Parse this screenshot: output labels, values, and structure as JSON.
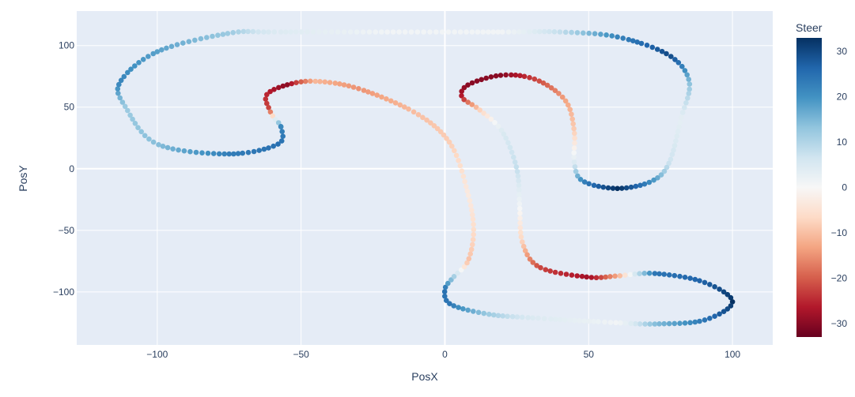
{
  "chart_data": {
    "type": "scatter",
    "title": "",
    "xlabel": "PosX",
    "ylabel": "PosY",
    "xlim": [
      -128,
      114
    ],
    "ylim": [
      -143,
      128
    ],
    "x_ticks": [
      -100,
      -50,
      0,
      50,
      100
    ],
    "y_ticks": [
      -100,
      -50,
      0,
      50,
      100
    ],
    "x_tick_labels": [
      "−100",
      "−50",
      "0",
      "50",
      "100"
    ],
    "y_tick_labels": [
      "−100",
      "−50",
      "0",
      "50",
      "100"
    ],
    "grid": true,
    "colorbar": {
      "title": "Steer",
      "range": [
        -33,
        33
      ],
      "ticks": [
        30,
        20,
        10,
        0,
        -10,
        -20,
        -30
      ],
      "tick_labels": [
        "30",
        "20",
        "10",
        "0",
        "−10",
        "−20",
        "−30"
      ],
      "colorscale": [
        "#67001f",
        "#b2182b",
        "#d6604d",
        "#f4a582",
        "#fddbc7",
        "#f7f7f7",
        "#d1e5f0",
        "#92c5de",
        "#4393c3",
        "#2166ac",
        "#053061"
      ]
    },
    "colors": {
      "plot_bg": "#e5ecf6",
      "grid": "#ffffff",
      "text": "#2a3f5f"
    },
    "path_knots": [
      {
        "x": -57,
        "y": 34,
        "steer": 22
      },
      {
        "x": -58,
        "y": 20,
        "steer": 25
      },
      {
        "x": -75,
        "y": 12,
        "steer": 23
      },
      {
        "x": -100,
        "y": 20,
        "steer": 14
      },
      {
        "x": -111,
        "y": 50,
        "steer": 12
      },
      {
        "x": -113,
        "y": 70,
        "steer": 22
      },
      {
        "x": -100,
        "y": 95,
        "steer": 18
      },
      {
        "x": -75,
        "y": 110,
        "steer": 12
      },
      {
        "x": -60,
        "y": 111,
        "steer": 5
      },
      {
        "x": -20,
        "y": 111,
        "steer": 1
      },
      {
        "x": 20,
        "y": 111,
        "steer": 1
      },
      {
        "x": 40,
        "y": 111,
        "steer": 8
      },
      {
        "x": 60,
        "y": 107,
        "steer": 22
      },
      {
        "x": 78,
        "y": 92,
        "steer": 30
      },
      {
        "x": 85,
        "y": 70,
        "steer": 14
      },
      {
        "x": 82,
        "y": 40,
        "steer": 3
      },
      {
        "x": 78,
        "y": 5,
        "steer": 7
      },
      {
        "x": 72,
        "y": -10,
        "steer": 20
      },
      {
        "x": 60,
        "y": -16,
        "steer": 33
      },
      {
        "x": 48,
        "y": -10,
        "steer": 22
      },
      {
        "x": 45,
        "y": 5,
        "steer": 5
      },
      {
        "x": 45,
        "y": 30,
        "steer": -8
      },
      {
        "x": 42,
        "y": 55,
        "steer": -13
      },
      {
        "x": 32,
        "y": 72,
        "steer": -22
      },
      {
        "x": 20,
        "y": 76,
        "steer": -30
      },
      {
        "x": 8,
        "y": 68,
        "steer": -30
      },
      {
        "x": 6,
        "y": 58,
        "steer": -26
      },
      {
        "x": 12,
        "y": 48,
        "steer": -8
      },
      {
        "x": 20,
        "y": 30,
        "steer": 5
      },
      {
        "x": 25,
        "y": 0,
        "steer": 8
      },
      {
        "x": 26,
        "y": -30,
        "steer": 1
      },
      {
        "x": 27,
        "y": -60,
        "steer": -8
      },
      {
        "x": 33,
        "y": -80,
        "steer": -22
      },
      {
        "x": 50,
        "y": -88,
        "steer": -28
      },
      {
        "x": 60,
        "y": -87,
        "steer": -13
      },
      {
        "x": 73,
        "y": -85,
        "steer": 24
      },
      {
        "x": 90,
        "y": -92,
        "steer": 27
      },
      {
        "x": 100,
        "y": -108,
        "steer": 33
      },
      {
        "x": 90,
        "y": -123,
        "steer": 24
      },
      {
        "x": 73,
        "y": -126,
        "steer": 14
      },
      {
        "x": 60,
        "y": -125,
        "steer": 1
      },
      {
        "x": 30,
        "y": -121,
        "steer": 5
      },
      {
        "x": 15,
        "y": -118,
        "steer": 12
      },
      {
        "x": 2,
        "y": -110,
        "steer": 24
      },
      {
        "x": 0,
        "y": -98,
        "steer": 25
      },
      {
        "x": 3,
        "y": -88,
        "steer": 12
      },
      {
        "x": 8,
        "y": -75,
        "steer": -10
      },
      {
        "x": 10,
        "y": -50,
        "steer": -6
      },
      {
        "x": 8,
        "y": -20,
        "steer": -3
      },
      {
        "x": 2,
        "y": 20,
        "steer": -8
      },
      {
        "x": -10,
        "y": 45,
        "steer": -10
      },
      {
        "x": -30,
        "y": 65,
        "steer": -15
      },
      {
        "x": -45,
        "y": 71,
        "steer": -11
      },
      {
        "x": -55,
        "y": 68,
        "steer": -30
      },
      {
        "x": -62,
        "y": 60,
        "steer": -25
      },
      {
        "x": -61,
        "y": 48,
        "steer": -22
      },
      {
        "x": -59,
        "y": 40,
        "steer": 4
      }
    ]
  }
}
